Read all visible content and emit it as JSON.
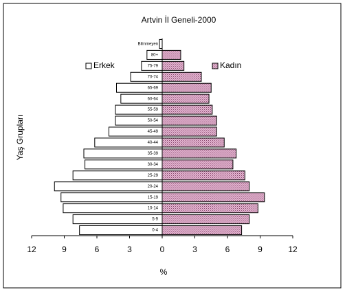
{
  "chart_data": {
    "type": "bar",
    "orientation": "horizontal",
    "pyramid": true,
    "title": "Artvin İl Geneli-2000",
    "xlabel": "%",
    "ylabel": "Yaş Grupları",
    "categories": [
      "0-4",
      "5-9",
      "10-14",
      "15-19",
      "20-24",
      "25-29",
      "30-34",
      "35-39",
      "40-44",
      "45-49",
      "50-54",
      "55-59",
      "60-64",
      "65-69",
      "70-74",
      "75-79",
      "80+",
      "Bilinmeyen"
    ],
    "series": [
      {
        "name": "Erkek",
        "color": "#ffffff",
        "values": [
          -7.6,
          -8.2,
          -9.1,
          -9.3,
          -9.9,
          -8.2,
          -7.1,
          -7.2,
          -6.2,
          -4.9,
          -4.3,
          -4.3,
          -3.8,
          -4.2,
          -2.9,
          -1.9,
          -1.4,
          -0.25
        ]
      },
      {
        "name": "Kadın",
        "color": "#e3b4d0",
        "values": [
          7.3,
          8.0,
          8.8,
          9.4,
          8.0,
          7.6,
          6.5,
          6.8,
          5.7,
          5.0,
          5.0,
          4.6,
          4.3,
          4.5,
          3.6,
          2.0,
          1.7,
          0
        ]
      }
    ],
    "xlim": [
      -12,
      12
    ],
    "xticks": [
      {
        "value": -12,
        "label": "12"
      },
      {
        "value": -9,
        "label": "9"
      },
      {
        "value": -6,
        "label": "6"
      },
      {
        "value": -3,
        "label": "3"
      },
      0,
      3,
      6,
      9,
      12
    ]
  }
}
